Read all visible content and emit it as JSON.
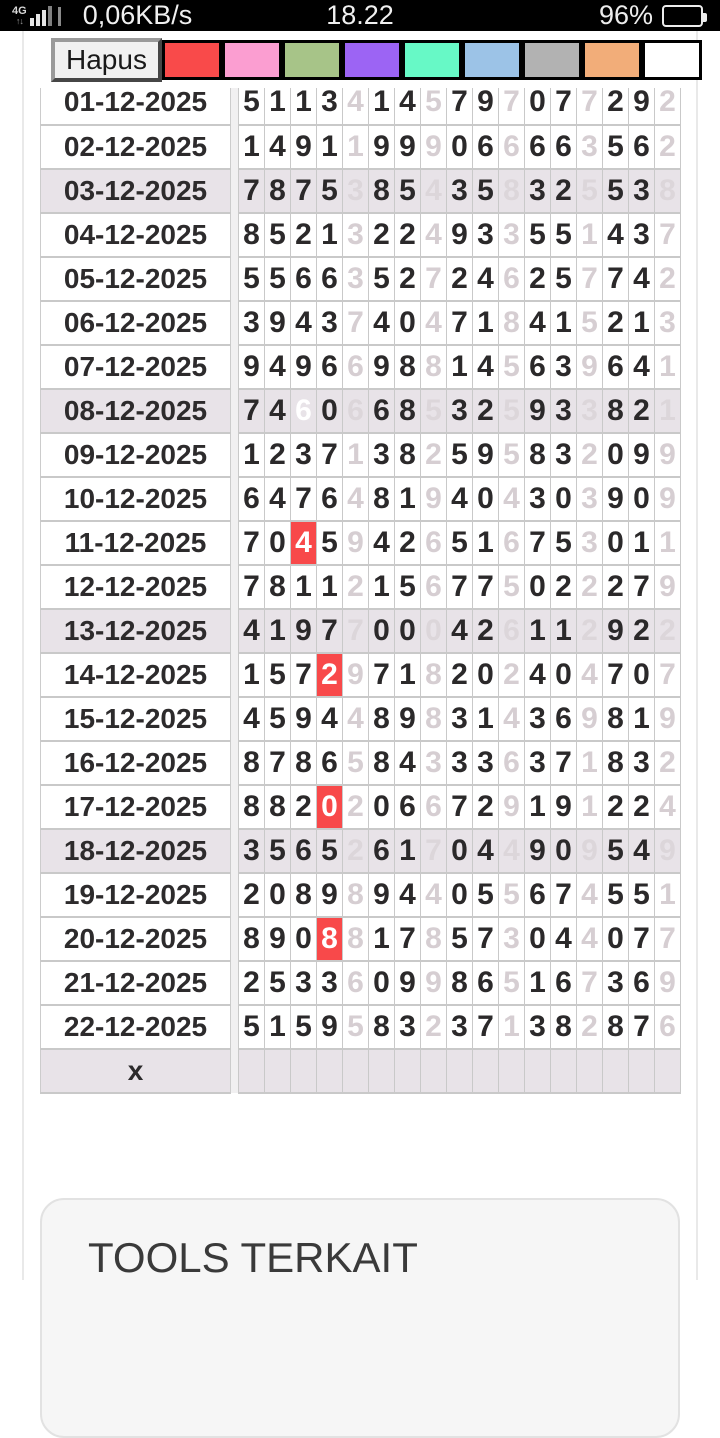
{
  "status_bar": {
    "network_type": "4G",
    "speed": "0,06KB/s",
    "time": "18.22",
    "battery_percent": "96%"
  },
  "toolbar": {
    "delete_label": "Hapus",
    "swatches": [
      {
        "name": "red",
        "color": "#f94a4a"
      },
      {
        "name": "pink",
        "color": "#fb9ed1"
      },
      {
        "name": "green",
        "color": "#a7c488"
      },
      {
        "name": "purple",
        "color": "#9c64f4"
      },
      {
        "name": "spring-green",
        "color": "#67f9c6"
      },
      {
        "name": "light-blue",
        "color": "#9cc3e7"
      },
      {
        "name": "gray",
        "color": "#b2b2b2"
      },
      {
        "name": "orange",
        "color": "#f2ad79"
      },
      {
        "name": "white",
        "color": "#ffffff"
      }
    ]
  },
  "table": {
    "columns": 17,
    "light_indices": [
      4,
      7,
      10,
      13,
      16
    ],
    "rows": [
      {
        "date": "01-12-2025",
        "digits": [
          "5",
          "1",
          "1",
          "3",
          "4",
          "1",
          "4",
          "5",
          "7",
          "9",
          "7",
          "0",
          "7",
          "7",
          "2",
          "9",
          "2"
        ],
        "shaded": false,
        "red_index": null
      },
      {
        "date": "02-12-2025",
        "digits": [
          "1",
          "4",
          "9",
          "1",
          "1",
          "9",
          "9",
          "9",
          "0",
          "6",
          "6",
          "6",
          "6",
          "3",
          "5",
          "6",
          "2"
        ],
        "shaded": false,
        "red_index": null
      },
      {
        "date": "03-12-2025",
        "digits": [
          "7",
          "8",
          "7",
          "5",
          "3",
          "8",
          "5",
          "4",
          "3",
          "5",
          "8",
          "3",
          "2",
          "5",
          "5",
          "3",
          "8"
        ],
        "shaded": true,
        "red_index": null
      },
      {
        "date": "04-12-2025",
        "digits": [
          "8",
          "5",
          "2",
          "1",
          "3",
          "2",
          "2",
          "4",
          "9",
          "3",
          "3",
          "5",
          "5",
          "1",
          "4",
          "3",
          "7"
        ],
        "shaded": false,
        "red_index": null
      },
      {
        "date": "05-12-2025",
        "digits": [
          "5",
          "5",
          "6",
          "6",
          "3",
          "5",
          "2",
          "7",
          "2",
          "4",
          "6",
          "2",
          "5",
          "7",
          "7",
          "4",
          "2"
        ],
        "shaded": false,
        "red_index": null
      },
      {
        "date": "06-12-2025",
        "digits": [
          "3",
          "9",
          "4",
          "3",
          "7",
          "4",
          "0",
          "4",
          "7",
          "1",
          "8",
          "4",
          "1",
          "5",
          "2",
          "1",
          "3"
        ],
        "shaded": false,
        "red_index": null
      },
      {
        "date": "07-12-2025",
        "digits": [
          "9",
          "4",
          "9",
          "6",
          "6",
          "9",
          "8",
          "8",
          "1",
          "4",
          "5",
          "6",
          "3",
          "9",
          "6",
          "4",
          "1"
        ],
        "shaded": false,
        "red_index": null
      },
      {
        "date": "08-12-2025",
        "digits": [
          "7",
          "4",
          "6",
          "0",
          "6",
          "6",
          "8",
          "5",
          "3",
          "2",
          "5",
          "9",
          "3",
          "3",
          "8",
          "2",
          "1"
        ],
        "shaded": true,
        "red_index": 2
      },
      {
        "date": "09-12-2025",
        "digits": [
          "1",
          "2",
          "3",
          "7",
          "1",
          "3",
          "8",
          "2",
          "5",
          "9",
          "5",
          "8",
          "3",
          "2",
          "0",
          "9",
          "9"
        ],
        "shaded": false,
        "red_index": null
      },
      {
        "date": "10-12-2025",
        "digits": [
          "6",
          "4",
          "7",
          "6",
          "4",
          "8",
          "1",
          "9",
          "4",
          "0",
          "4",
          "3",
          "0",
          "3",
          "9",
          "0",
          "9"
        ],
        "shaded": false,
        "red_index": null
      },
      {
        "date": "11-12-2025",
        "digits": [
          "7",
          "0",
          "4",
          "5",
          "9",
          "4",
          "2",
          "6",
          "5",
          "1",
          "6",
          "7",
          "5",
          "3",
          "0",
          "1",
          "1"
        ],
        "shaded": false,
        "red_index": 2
      },
      {
        "date": "12-12-2025",
        "digits": [
          "7",
          "8",
          "1",
          "1",
          "2",
          "1",
          "5",
          "6",
          "7",
          "7",
          "5",
          "0",
          "2",
          "2",
          "2",
          "7",
          "9"
        ],
        "shaded": false,
        "red_index": null
      },
      {
        "date": "13-12-2025",
        "digits": [
          "4",
          "1",
          "9",
          "7",
          "7",
          "0",
          "0",
          "0",
          "4",
          "2",
          "6",
          "1",
          "1",
          "2",
          "9",
          "2",
          "2"
        ],
        "shaded": true,
        "red_index": null
      },
      {
        "date": "14-12-2025",
        "digits": [
          "1",
          "5",
          "7",
          "2",
          "9",
          "7",
          "1",
          "8",
          "2",
          "0",
          "2",
          "4",
          "0",
          "4",
          "7",
          "0",
          "7"
        ],
        "shaded": false,
        "red_index": 3
      },
      {
        "date": "15-12-2025",
        "digits": [
          "4",
          "5",
          "9",
          "4",
          "4",
          "8",
          "9",
          "8",
          "3",
          "1",
          "4",
          "3",
          "6",
          "9",
          "8",
          "1",
          "9"
        ],
        "shaded": false,
        "red_index": null
      },
      {
        "date": "16-12-2025",
        "digits": [
          "8",
          "7",
          "8",
          "6",
          "5",
          "8",
          "4",
          "3",
          "3",
          "3",
          "6",
          "3",
          "7",
          "1",
          "8",
          "3",
          "2"
        ],
        "shaded": false,
        "red_index": null
      },
      {
        "date": "17-12-2025",
        "digits": [
          "8",
          "8",
          "2",
          "0",
          "2",
          "0",
          "6",
          "6",
          "7",
          "2",
          "9",
          "1",
          "9",
          "1",
          "2",
          "2",
          "4"
        ],
        "shaded": false,
        "red_index": 3
      },
      {
        "date": "18-12-2025",
        "digits": [
          "3",
          "5",
          "6",
          "5",
          "2",
          "6",
          "1",
          "7",
          "0",
          "4",
          "4",
          "9",
          "0",
          "9",
          "5",
          "4",
          "9"
        ],
        "shaded": true,
        "red_index": null
      },
      {
        "date": "19-12-2025",
        "digits": [
          "2",
          "0",
          "8",
          "9",
          "8",
          "9",
          "4",
          "4",
          "0",
          "5",
          "5",
          "6",
          "7",
          "4",
          "5",
          "5",
          "1"
        ],
        "shaded": false,
        "red_index": null
      },
      {
        "date": "20-12-2025",
        "digits": [
          "8",
          "9",
          "0",
          "8",
          "8",
          "1",
          "7",
          "8",
          "5",
          "7",
          "3",
          "0",
          "4",
          "4",
          "0",
          "7",
          "7"
        ],
        "shaded": false,
        "red_index": 3
      },
      {
        "date": "21-12-2025",
        "digits": [
          "2",
          "5",
          "3",
          "3",
          "6",
          "0",
          "9",
          "9",
          "8",
          "6",
          "5",
          "1",
          "6",
          "7",
          "3",
          "6",
          "9"
        ],
        "shaded": false,
        "red_index": null
      },
      {
        "date": "22-12-2025",
        "digits": [
          "5",
          "1",
          "5",
          "9",
          "5",
          "8",
          "3",
          "2",
          "3",
          "7",
          "1",
          "3",
          "8",
          "2",
          "8",
          "7",
          "6"
        ],
        "shaded": false,
        "red_index": null
      }
    ],
    "footer": {
      "label": "x",
      "shaded": true,
      "red_index": 3
    }
  },
  "related_tools": {
    "title": "TOOLS TERKAIT"
  },
  "colors": {
    "highlight_red": "#f8494a",
    "shaded_row_bg": "#e8e3e8",
    "dark_digit": "#2b292a",
    "light_digit": "#d6ced2",
    "cell_border": "#c9c9c9"
  }
}
